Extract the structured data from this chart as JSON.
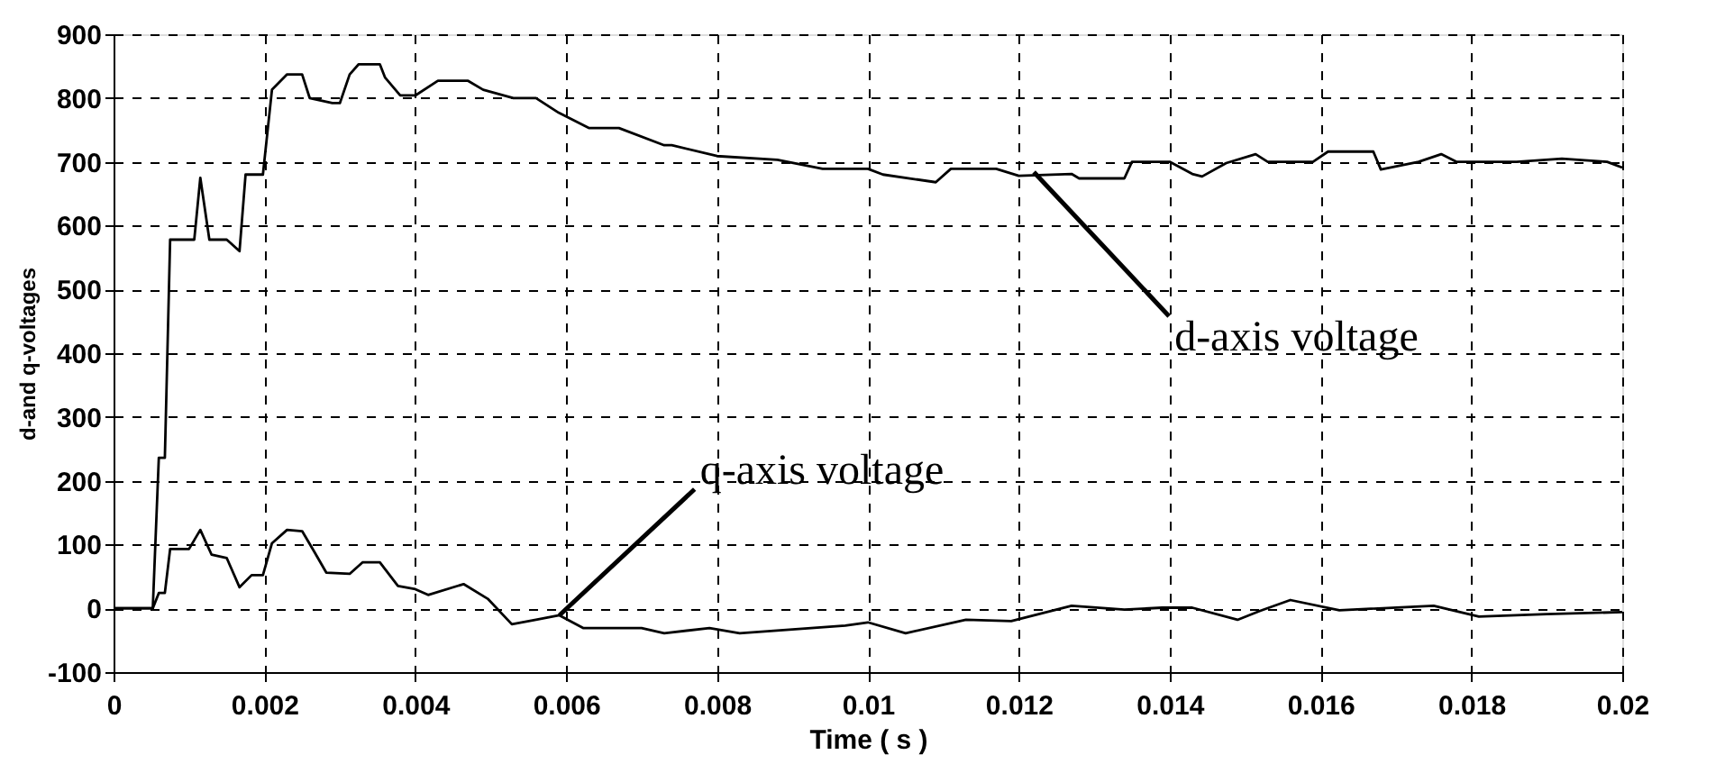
{
  "chart_data": {
    "type": "line",
    "xlabel": "Time ( s )",
    "ylabel": "d-and q-voltages",
    "xlim": [
      0,
      0.02
    ],
    "xticks": [
      0,
      0.002,
      0.004,
      0.006,
      0.008,
      0.01,
      0.012,
      0.014,
      0.016,
      0.018,
      0.02
    ],
    "ylim": [
      -100,
      900
    ],
    "yticks": [
      -100,
      0,
      100,
      200,
      300,
      400,
      500,
      600,
      700,
      800,
      900
    ],
    "grid": true,
    "marker": "none",
    "line_style": "solid",
    "series": [
      {
        "color": "#000000",
        "x": [
          0,
          0.00052,
          0.0006,
          0.00068,
          0.00075,
          0.00107,
          0.00115,
          0.00127,
          0.0015,
          0.00167,
          0.00175,
          0.00198,
          0.0021,
          0.0023,
          0.0025,
          0.0026,
          0.0029,
          0.003,
          0.00313,
          0.00325,
          0.00353,
          0.0036,
          0.0038,
          0.004,
          0.0043,
          0.0047,
          0.0049,
          0.0053,
          0.0056,
          0.0059,
          0.0063,
          0.0067,
          0.0073,
          0.0074,
          0.008,
          0.0088,
          0.0094,
          0.01,
          0.0102,
          0.0109,
          0.0111,
          0.0117,
          0.012,
          0.0127,
          0.0128,
          0.0134,
          0.0135,
          0.014,
          0.0143,
          0.01443,
          0.01475,
          0.01514,
          0.0153,
          0.0159,
          0.0161,
          0.0167,
          0.0168,
          0.0173,
          0.0176,
          0.0178,
          0.0186,
          0.0192,
          0.0198,
          0.02
        ],
        "values": [
          0,
          0,
          236,
          236,
          578,
          578,
          675,
          578,
          578,
          560,
          680,
          680,
          813,
          837,
          837,
          800,
          792,
          792,
          837,
          853,
          853,
          832,
          804,
          804,
          827,
          827,
          813,
          800,
          800,
          777,
          753,
          753,
          726,
          726,
          709,
          703,
          689,
          689,
          680,
          668,
          689,
          689,
          678,
          681,
          674,
          674,
          700,
          700,
          681,
          677,
          698,
          712,
          700,
          700,
          716,
          716,
          688,
          700,
          712,
          700,
          700,
          705,
          700,
          691
        ]
      },
      {
        "color": "#000000",
        "x": [
          0,
          0.00052,
          0.0006,
          0.00068,
          0.00075,
          0.001,
          0.00115,
          0.0013,
          0.0015,
          0.00167,
          0.00183,
          0.00198,
          0.0021,
          0.0023,
          0.0025,
          0.00266,
          0.00282,
          0.00313,
          0.0033,
          0.00353,
          0.00377,
          0.004,
          0.00417,
          0.00464,
          0.00496,
          0.00528,
          0.0056,
          0.00591,
          0.00623,
          0.007,
          0.0073,
          0.0079,
          0.0083,
          0.0097,
          0.01,
          0.0105,
          0.0113,
          0.0119,
          0.0127,
          0.0134,
          0.0139,
          0.0143,
          0.0149,
          0.0152,
          0.0156,
          0.01625,
          0.0175,
          0.0181,
          0.019,
          0.02
        ],
        "values": [
          0,
          0,
          24,
          24,
          93,
          93,
          123,
          84,
          79,
          33,
          52,
          52,
          102,
          123,
          121,
          89,
          56,
          54,
          72,
          72,
          35,
          30,
          21,
          38,
          15,
          -25,
          -18,
          -11,
          -31,
          -31,
          -39,
          -31,
          -39,
          -27,
          -22,
          -39,
          -18,
          -20,
          4,
          -2,
          1,
          1,
          -18,
          -4,
          13,
          -3,
          4,
          -13,
          -9,
          -6
        ]
      }
    ],
    "annotations": [
      {
        "text": "d-axis voltage",
        "x": 0.0122,
        "y": 684
      },
      {
        "text": "q-axis voltage",
        "x": 0.00591,
        "y": -11
      }
    ]
  }
}
